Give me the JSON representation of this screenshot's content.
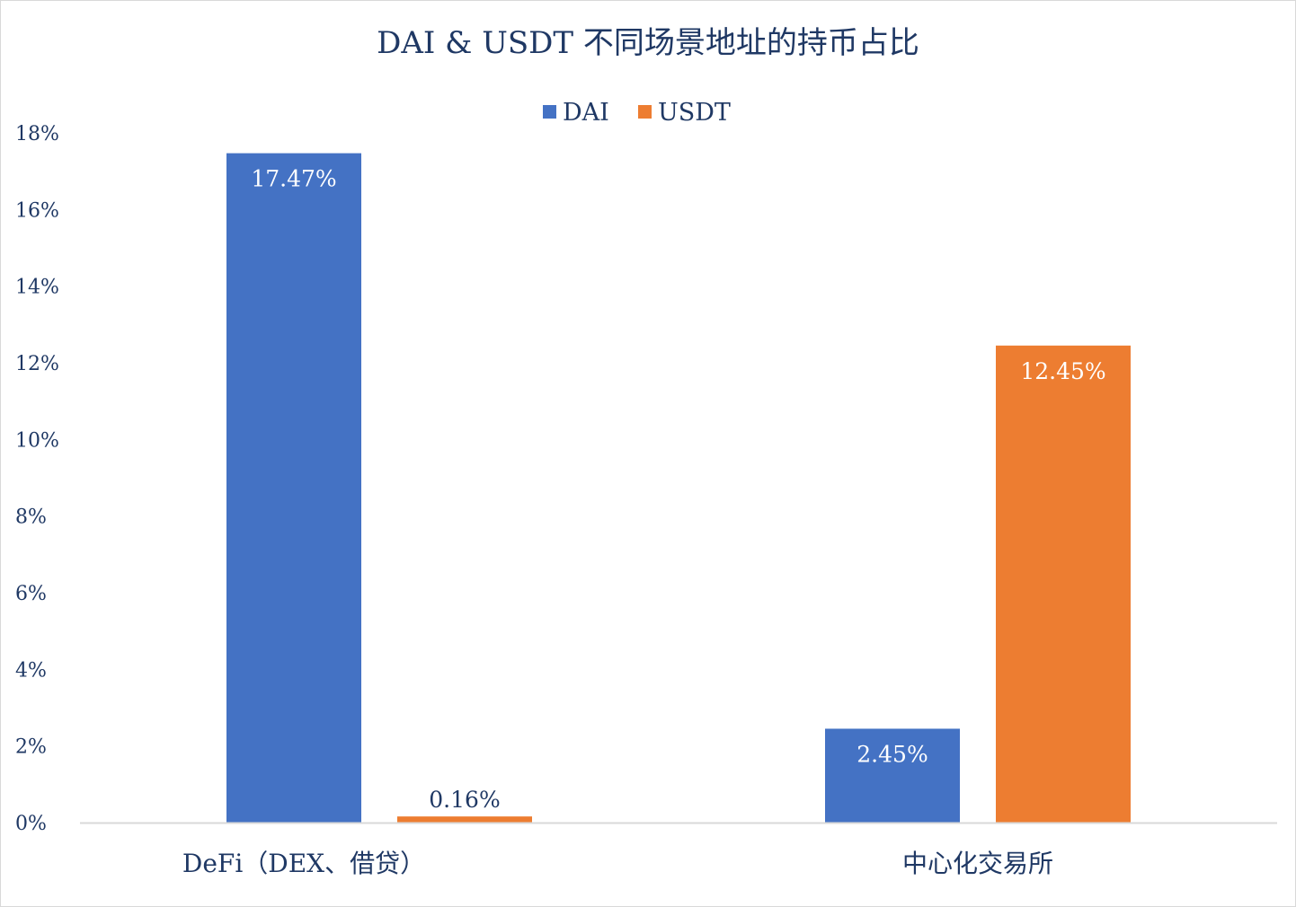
{
  "chart_data": {
    "type": "bar",
    "title": "DAI & USDT 不同场景地址的持币占比",
    "categories": [
      "DeFi（DEX、借贷）",
      "中心化交易所"
    ],
    "series": [
      {
        "name": "DAI",
        "color": "#4472c4",
        "values": [
          17.47,
          2.45
        ],
        "labels": [
          "17.47%",
          "2.45%"
        ]
      },
      {
        "name": "USDT",
        "color": "#ed7d31",
        "values": [
          0.16,
          12.45
        ],
        "labels": [
          "0.16%",
          "12.45%"
        ]
      }
    ],
    "ylim": [
      0,
      18
    ],
    "yticks": [
      0,
      2,
      4,
      6,
      8,
      10,
      12,
      14,
      16,
      18
    ],
    "ytick_labels": [
      "0%",
      "2%",
      "4%",
      "6%",
      "8%",
      "10%",
      "12%",
      "14%",
      "16%",
      "18%"
    ],
    "xlabel": "",
    "ylabel": "",
    "legend_position": "top-center",
    "grid": false
  }
}
